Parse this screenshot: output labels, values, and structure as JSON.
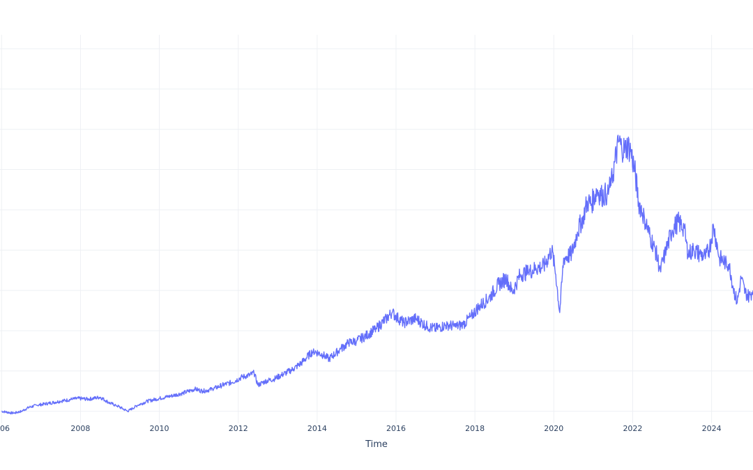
{
  "chart_data": {
    "type": "line",
    "title": "",
    "xlabel": "Time",
    "ylabel": "",
    "x_tick_labels": [
      "06",
      "2008",
      "2010",
      "2012",
      "2014",
      "2016",
      "2018",
      "2020",
      "2022",
      "2024"
    ],
    "xlim": [
      2005.96,
      2025.05
    ],
    "ylim": [
      -0.3,
      9.0
    ],
    "grid": true,
    "legend": "none",
    "line_color": "#636efa",
    "series": [
      {
        "x": [
          2006.0,
          2006.3,
          2006.5,
          2006.7,
          2006.9,
          2007.2,
          2007.5,
          2007.8,
          2007.95,
          2008.2,
          2008.5,
          2008.75,
          2008.9,
          2009.1,
          2009.2,
          2009.45,
          2009.7,
          2010.0,
          2010.3,
          2010.6,
          2010.9,
          2011.1,
          2011.35,
          2011.6,
          2011.85,
          2012.1,
          2012.3,
          2012.4,
          2012.5,
          2012.7,
          2012.9,
          2013.2,
          2013.4,
          2013.6,
          2013.9,
          2014.15,
          2014.3,
          2014.6,
          2014.8,
          2015.0,
          2015.2,
          2015.5,
          2015.75,
          2015.9,
          2016.0,
          2016.2,
          2016.5,
          2016.8,
          2017.0,
          2017.3,
          2017.5,
          2017.7,
          2017.9,
          2018.1,
          2018.35,
          2018.6,
          2018.8,
          2018.95,
          2019.15,
          2019.35,
          2019.55,
          2019.75,
          2019.95,
          2020.05,
          2020.15,
          2020.25,
          2020.45,
          2020.6,
          2020.75,
          2020.85,
          2020.95,
          2021.1,
          2021.2,
          2021.35,
          2021.45,
          2021.55,
          2021.65,
          2021.72,
          2021.8,
          2021.88,
          2021.95,
          2022.05,
          2022.15,
          2022.3,
          2022.45,
          2022.55,
          2022.7,
          2022.85,
          2023.0,
          2023.15,
          2023.3,
          2023.4,
          2023.55,
          2023.7,
          2023.85,
          2023.95,
          2024.05,
          2024.2,
          2024.35,
          2024.45,
          2024.55,
          2024.65,
          2024.75,
          2024.85,
          2024.95,
          2025.05
        ],
        "y": [
          0.0,
          -0.05,
          0.0,
          0.1,
          0.15,
          0.2,
          0.25,
          0.3,
          0.32,
          0.3,
          0.35,
          0.2,
          0.15,
          0.05,
          0.0,
          0.15,
          0.25,
          0.32,
          0.38,
          0.45,
          0.55,
          0.5,
          0.55,
          0.65,
          0.72,
          0.85,
          0.9,
          0.95,
          0.65,
          0.75,
          0.8,
          0.95,
          1.05,
          1.2,
          1.5,
          1.4,
          1.3,
          1.55,
          1.7,
          1.75,
          1.85,
          2.05,
          2.3,
          2.45,
          2.35,
          2.2,
          2.3,
          2.1,
          2.05,
          2.15,
          2.1,
          2.15,
          2.35,
          2.6,
          2.8,
          3.15,
          3.3,
          2.95,
          3.4,
          3.45,
          3.55,
          3.6,
          4.0,
          3.4,
          2.45,
          3.8,
          3.9,
          4.45,
          4.85,
          5.2,
          5.15,
          5.5,
          5.35,
          5.4,
          5.6,
          6.2,
          6.7,
          6.55,
          6.5,
          6.6,
          6.45,
          6.0,
          5.2,
          4.8,
          4.3,
          4.1,
          3.5,
          4.0,
          4.5,
          4.7,
          4.55,
          3.9,
          4.0,
          3.9,
          3.85,
          4.05,
          4.6,
          3.8,
          3.7,
          3.65,
          3.05,
          2.7,
          3.3,
          2.95,
          2.85,
          3.0
        ]
      }
    ]
  }
}
